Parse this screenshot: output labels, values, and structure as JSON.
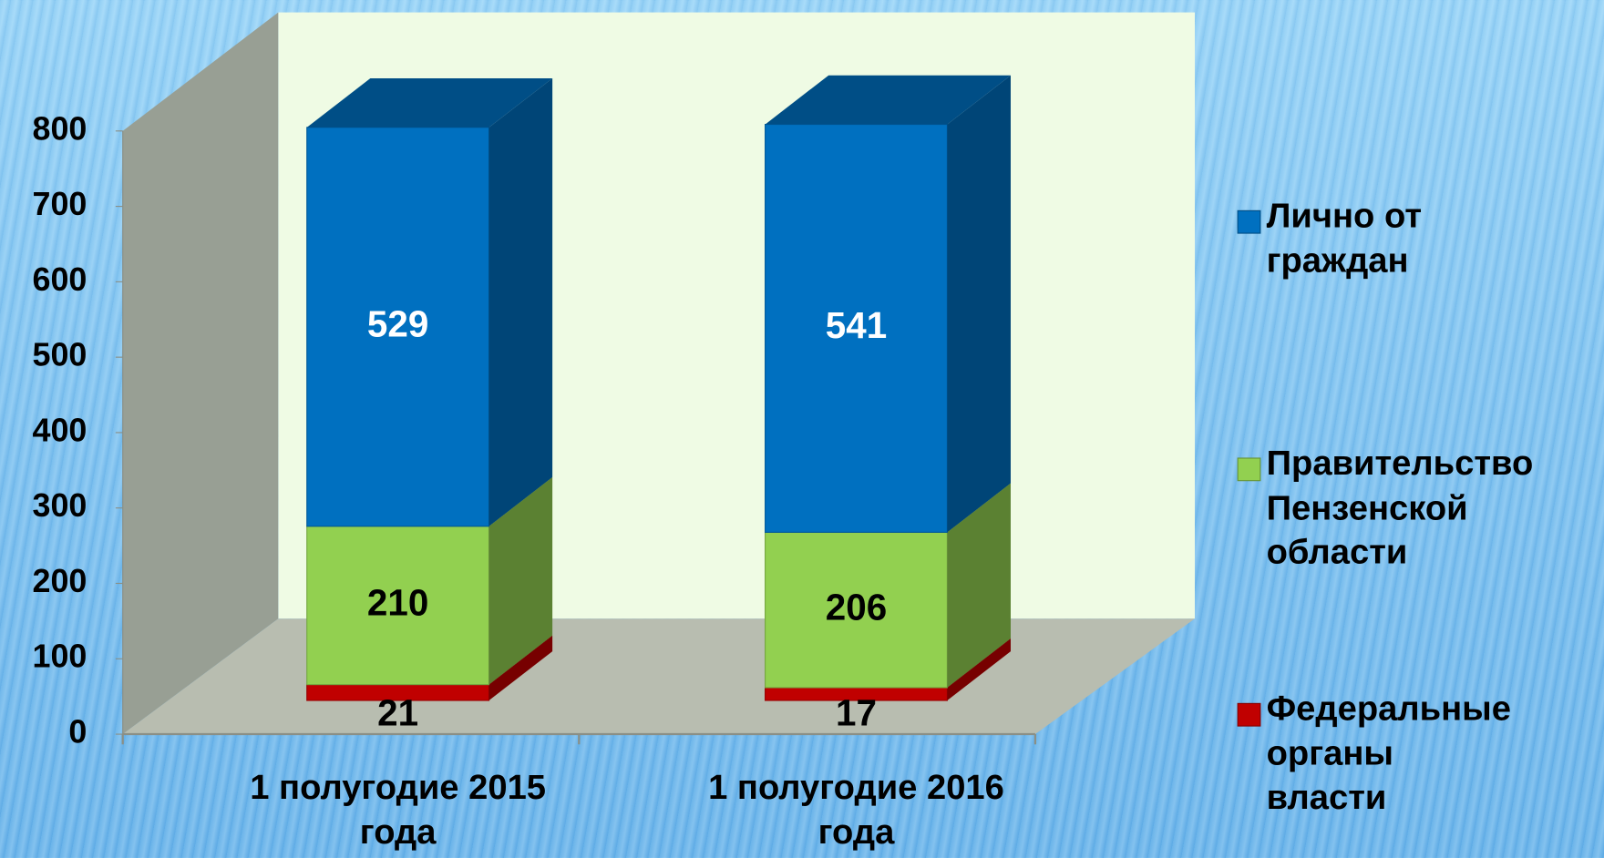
{
  "chart_data": {
    "type": "bar3d_stacked",
    "categories": [
      "1 полугодие 2015 года",
      "1 полугодие 2016 года"
    ],
    "series": [
      {
        "name": "Федеральные органы власти",
        "color": "#c00000",
        "values": [
          21,
          17
        ]
      },
      {
        "name": "Правительство Пензенской области",
        "color": "#92d050",
        "values": [
          210,
          206
        ]
      },
      {
        "name": "Лично от граждан",
        "color": "#0070c0",
        "values": [
          529,
          541
        ]
      }
    ],
    "ylim": [
      0,
      800
    ],
    "yticks": [
      0,
      100,
      200,
      300,
      400,
      500,
      600,
      700,
      800
    ],
    "grid": false,
    "legend": "right"
  }
}
